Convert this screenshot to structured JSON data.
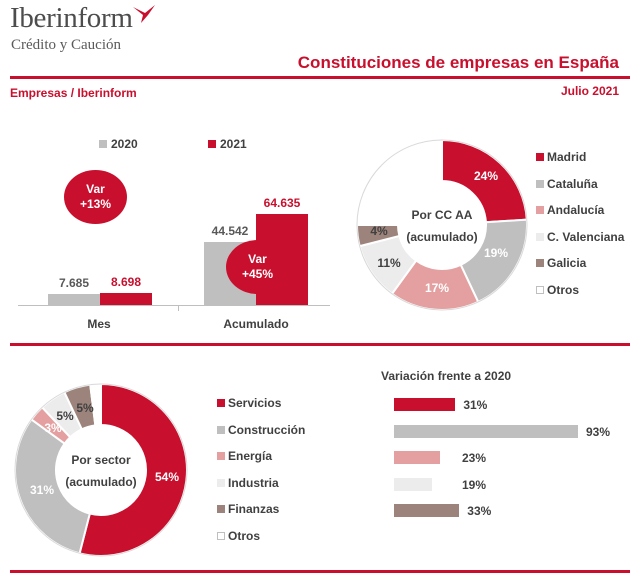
{
  "header": {
    "logo_name": "Iberinform",
    "logo_sub": "Crédito y Caución",
    "title": "Constituciones de empresas en España",
    "left_label": "Empresas / Iberinform",
    "date": "Julio 2021"
  },
  "colors": {
    "red": "#c8102e",
    "gray": "#bfbfbf",
    "pink": "#e4a0a0",
    "light": "#ececec",
    "brown": "#9c847c",
    "white": "#ffffff"
  },
  "chart_data": [
    {
      "type": "bar",
      "categories": [
        "Mes",
        "Acumulado"
      ],
      "series": [
        {
          "name": "2020",
          "values": [
            7685,
            44542
          ],
          "labels": [
            "7.685",
            "44.542"
          ]
        },
        {
          "name": "2021",
          "values": [
            8698,
            64635
          ],
          "labels": [
            "8.698",
            "64.635"
          ]
        }
      ],
      "annotations": [
        {
          "line1": "Var",
          "line2": "+13%"
        },
        {
          "line1": "Var",
          "line2": "+45%"
        }
      ]
    },
    {
      "type": "pie",
      "center_label": [
        "Por CC AA",
        "(acumulado)"
      ],
      "slices": [
        {
          "label": "Madrid",
          "value": 24,
          "text": "24%"
        },
        {
          "label": "Cataluña",
          "value": 19,
          "text": "19%"
        },
        {
          "label": "Andalucía",
          "value": 17,
          "text": "17%"
        },
        {
          "label": "C. Valenciana",
          "value": 11,
          "text": "11%"
        },
        {
          "label": "Galicia",
          "value": 4,
          "text": "4%"
        },
        {
          "label": "Otros",
          "value": 25,
          "text": ""
        }
      ]
    },
    {
      "type": "pie",
      "center_label": [
        "Por sector",
        "(acumulado)"
      ],
      "slices": [
        {
          "label": "Servicios",
          "value": 54,
          "text": "54%"
        },
        {
          "label": "Construcción",
          "value": 31,
          "text": "31%"
        },
        {
          "label": "Energía",
          "value": 3,
          "text": "3%"
        },
        {
          "label": "Industria",
          "value": 5,
          "text": "5%"
        },
        {
          "label": "Finanzas",
          "value": 5,
          "text": "5%"
        },
        {
          "label": "Otros",
          "value": 2,
          "text": ""
        }
      ]
    },
    {
      "type": "bar",
      "orientation": "horizontal",
      "title": "Variación frente a 2020",
      "categories": [
        "Servicios",
        "Construcción",
        "Energía",
        "Industria",
        "Finanzas"
      ],
      "values": [
        31,
        93,
        23,
        19,
        33
      ],
      "labels": [
        "31%",
        "93%",
        "23%",
        "19%",
        "33%"
      ]
    }
  ]
}
